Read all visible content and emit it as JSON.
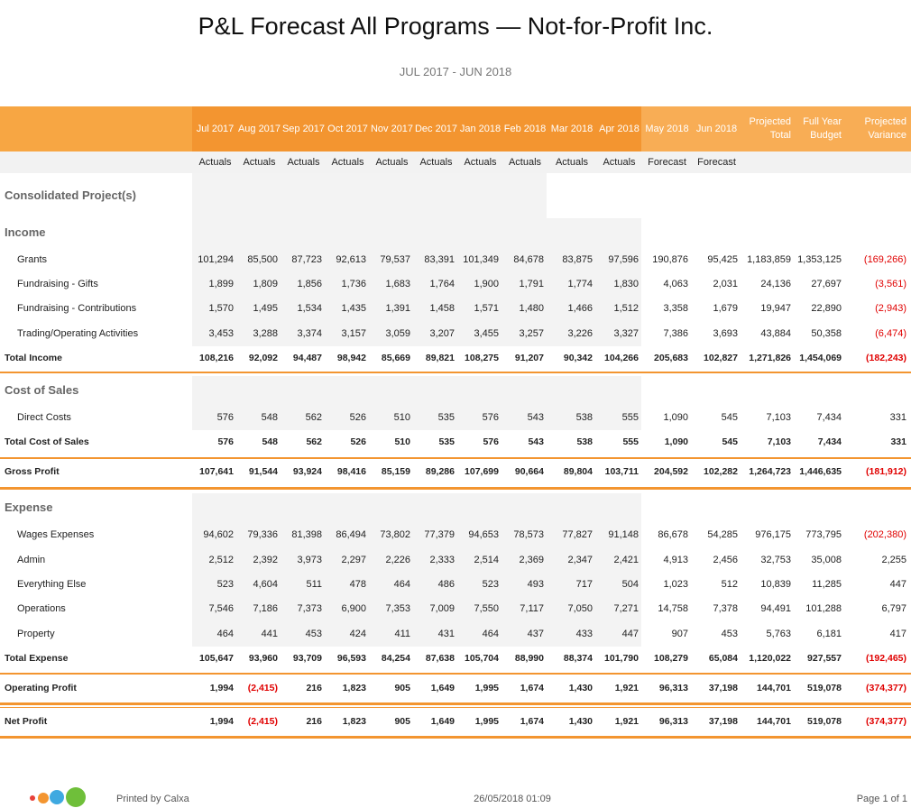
{
  "header": {
    "title": "P&L Forecast All Programs — Not-for-Profit Inc.",
    "subtitle": "JUL 2017 - JUN 2018"
  },
  "table": {
    "columns": [
      "Jul 2017",
      "Aug 2017",
      "Sep 2017",
      "Oct 2017",
      "Nov 2017",
      "Dec 2017",
      "Jan 2018",
      "Feb 2018",
      "Mar 2018",
      "Apr 2018",
      "May 2018",
      "Jun 2018",
      "Projected Total",
      "Full Year Budget",
      "Projected Variance"
    ],
    "column_notes": [
      "Actuals",
      "Actuals",
      "Actuals",
      "Actuals",
      "Actuals",
      "Actuals",
      "Actuals",
      "Actuals",
      "Actuals",
      "Actuals",
      "Forecast",
      "Forecast"
    ],
    "project": "Consolidated Project(s)",
    "income": {
      "title": "Income",
      "items": [
        {
          "label": "Grants",
          "values": [
            "101,294",
            "85,500",
            "87,723",
            "92,613",
            "79,537",
            "83,391",
            "101,349",
            "84,678",
            "83,875",
            "97,596",
            "190,876",
            "95,425",
            "1,183,859",
            "1,353,125",
            "(169,266)"
          ]
        },
        {
          "label": "Fundraising - Gifts",
          "values": [
            "1,899",
            "1,809",
            "1,856",
            "1,736",
            "1,683",
            "1,764",
            "1,900",
            "1,791",
            "1,774",
            "1,830",
            "4,063",
            "2,031",
            "24,136",
            "27,697",
            "(3,561)"
          ]
        },
        {
          "label": "Fundraising - Contributions",
          "values": [
            "1,570",
            "1,495",
            "1,534",
            "1,435",
            "1,391",
            "1,458",
            "1,571",
            "1,480",
            "1,466",
            "1,512",
            "3,358",
            "1,679",
            "19,947",
            "22,890",
            "(2,943)"
          ]
        },
        {
          "label": "Trading/Operating Activities",
          "values": [
            "3,453",
            "3,288",
            "3,374",
            "3,157",
            "3,059",
            "3,207",
            "3,455",
            "3,257",
            "3,226",
            "3,327",
            "7,386",
            "3,693",
            "43,884",
            "50,358",
            "(6,474)"
          ]
        }
      ],
      "total": {
        "label": "Total Income",
        "values": [
          "108,216",
          "92,092",
          "94,487",
          "98,942",
          "85,669",
          "89,821",
          "108,275",
          "91,207",
          "90,342",
          "104,266",
          "205,683",
          "102,827",
          "1,271,826",
          "1,454,069",
          "(182,243)"
        ]
      }
    },
    "cost_of_sales": {
      "title": "Cost of Sales",
      "items": [
        {
          "label": "Direct Costs",
          "values": [
            "576",
            "548",
            "562",
            "526",
            "510",
            "535",
            "576",
            "543",
            "538",
            "555",
            "1,090",
            "545",
            "7,103",
            "7,434",
            "331"
          ]
        }
      ],
      "total": {
        "label": "Total Cost of Sales",
        "values": [
          "576",
          "548",
          "562",
          "526",
          "510",
          "535",
          "576",
          "543",
          "538",
          "555",
          "1,090",
          "545",
          "7,103",
          "7,434",
          "331"
        ]
      }
    },
    "gross_profit": {
      "label": "Gross Profit",
      "values": [
        "107,641",
        "91,544",
        "93,924",
        "98,416",
        "85,159",
        "89,286",
        "107,699",
        "90,664",
        "89,804",
        "103,711",
        "204,592",
        "102,282",
        "1,264,723",
        "1,446,635",
        "(181,912)"
      ]
    },
    "expense": {
      "title": "Expense",
      "items": [
        {
          "label": "Wages Expenses",
          "values": [
            "94,602",
            "79,336",
            "81,398",
            "86,494",
            "73,802",
            "77,379",
            "94,653",
            "78,573",
            "77,827",
            "91,148",
            "86,678",
            "54,285",
            "976,175",
            "773,795",
            "(202,380)"
          ]
        },
        {
          "label": "Admin",
          "values": [
            "2,512",
            "2,392",
            "3,973",
            "2,297",
            "2,226",
            "2,333",
            "2,514",
            "2,369",
            "2,347",
            "2,421",
            "4,913",
            "2,456",
            "32,753",
            "35,008",
            "2,255"
          ]
        },
        {
          "label": "Everything Else",
          "values": [
            "523",
            "4,604",
            "511",
            "478",
            "464",
            "486",
            "523",
            "493",
            "717",
            "504",
            "1,023",
            "512",
            "10,839",
            "11,285",
            "447"
          ]
        },
        {
          "label": "Operations",
          "values": [
            "7,546",
            "7,186",
            "7,373",
            "6,900",
            "7,353",
            "7,009",
            "7,550",
            "7,117",
            "7,050",
            "7,271",
            "14,758",
            "7,378",
            "94,491",
            "101,288",
            "6,797"
          ]
        },
        {
          "label": "Property",
          "values": [
            "464",
            "441",
            "453",
            "424",
            "411",
            "431",
            "464",
            "437",
            "433",
            "447",
            "907",
            "453",
            "5,763",
            "6,181",
            "417"
          ]
        }
      ],
      "total": {
        "label": "Total Expense",
        "values": [
          "105,647",
          "93,960",
          "93,709",
          "96,593",
          "84,254",
          "87,638",
          "105,704",
          "88,990",
          "88,374",
          "101,790",
          "108,279",
          "65,084",
          "1,120,022",
          "927,557",
          "(192,465)"
        ]
      }
    },
    "operating_profit": {
      "label": "Operating Profit",
      "values": [
        "1,994",
        "(2,415)",
        "216",
        "1,823",
        "905",
        "1,649",
        "1,995",
        "1,674",
        "1,430",
        "1,921",
        "96,313",
        "37,198",
        "144,701",
        "519,078",
        "(374,377)"
      ]
    },
    "net_profit": {
      "label": "Net Profit",
      "values": [
        "1,994",
        "(2,415)",
        "216",
        "1,823",
        "905",
        "1,649",
        "1,995",
        "1,674",
        "1,430",
        "1,921",
        "96,313",
        "37,198",
        "144,701",
        "519,078",
        "(374,377)"
      ]
    }
  },
  "footer": {
    "printed_by": "Printed by Calxa",
    "date": "26/05/2018 01:09",
    "page": "Page 1 of 1"
  }
}
